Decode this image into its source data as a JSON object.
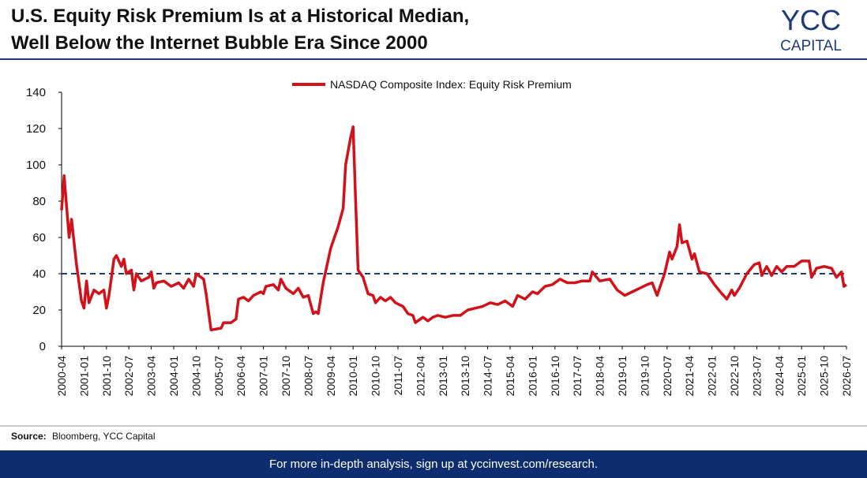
{
  "header": {
    "title_lines": [
      "U.S. Equity Risk Premium Is at a Historical Median,",
      "Well Below the Internet Bubble Era Since 2000"
    ],
    "logo_top": "YCC",
    "logo_bottom": "CAPITAL"
  },
  "chart_data": {
    "type": "line",
    "xlim": [
      "2000-04",
      "2026-07"
    ],
    "xticks": [
      "2000-04",
      "2001-01",
      "2001-10",
      "2002-07",
      "2003-04",
      "2004-01",
      "2004-10",
      "2005-07",
      "2006-04",
      "2007-01",
      "2007-10",
      "2008-07",
      "2009-04",
      "2010-01",
      "2010-10",
      "2011-07",
      "2012-04",
      "2013-01",
      "2013-10",
      "2014-07",
      "2015-04",
      "2016-01",
      "2016-10",
      "2017-07",
      "2018-04",
      "2019-01",
      "2019-10",
      "2020-07",
      "2021-04",
      "2022-01",
      "2022-10",
      "2023-07",
      "2024-04",
      "2025-01",
      "2025-10",
      "2026-07"
    ],
    "ylim": [
      0,
      140
    ],
    "yticks": [
      0,
      20,
      40,
      60,
      80,
      100,
      120,
      140
    ],
    "reference_line": 40,
    "reference_color": "#1f3a7a",
    "legend": "top",
    "x": [
      "2000-04",
      "2000-05",
      "2000-07",
      "2000-08",
      "2000-10",
      "2000-12",
      "2001-01",
      "2001-02",
      "2001-03",
      "2001-05",
      "2001-07",
      "2001-09",
      "2001-10",
      "2001-11",
      "2002-01",
      "2002-02",
      "2002-04",
      "2002-05",
      "2002-06",
      "2002-08",
      "2002-09",
      "2002-10",
      "2002-12",
      "2003-03",
      "2003-04",
      "2003-05",
      "2003-06",
      "2003-09",
      "2003-12",
      "2004-03",
      "2004-05",
      "2004-07",
      "2004-09",
      "2004-10",
      "2005-01",
      "2005-02",
      "2005-04",
      "2005-08",
      "2005-09",
      "2005-12",
      "2006-02",
      "2006-03",
      "2006-05",
      "2006-07",
      "2006-09",
      "2006-12",
      "2007-01",
      "2007-02",
      "2007-05",
      "2007-07",
      "2007-08",
      "2007-10",
      "2008-01",
      "2008-03",
      "2008-05",
      "2008-07",
      "2008-09",
      "2008-10",
      "2008-11",
      "2009-01",
      "2009-04",
      "2009-07",
      "2009-09",
      "2009-10",
      "2009-12",
      "2010-01",
      "2010-02",
      "2010-03",
      "2010-05",
      "2010-07",
      "2010-09",
      "2010-10",
      "2010-12",
      "2011-02",
      "2011-04",
      "2011-06",
      "2011-09",
      "2011-11",
      "2012-01",
      "2012-02",
      "2012-05",
      "2012-07",
      "2012-09",
      "2012-11",
      "2013-02",
      "2013-05",
      "2013-08",
      "2013-11",
      "2014-02",
      "2014-05",
      "2014-08",
      "2014-11",
      "2015-02",
      "2015-05",
      "2015-07",
      "2015-10",
      "2016-01",
      "2016-03",
      "2016-06",
      "2016-09",
      "2016-12",
      "2017-03",
      "2017-06",
      "2017-09",
      "2017-12",
      "2018-01",
      "2018-04",
      "2018-08",
      "2018-11",
      "2019-02",
      "2019-05",
      "2019-08",
      "2019-11",
      "2020-01",
      "2020-03",
      "2020-06",
      "2020-08",
      "2020-09",
      "2020-11",
      "2020-12",
      "2021-01",
      "2021-03",
      "2021-05",
      "2021-06",
      "2021-08",
      "2021-11",
      "2022-02",
      "2022-05",
      "2022-07",
      "2022-09",
      "2022-10",
      "2022-12",
      "2023-03",
      "2023-06",
      "2023-08",
      "2023-09",
      "2023-11",
      "2024-01",
      "2024-03",
      "2024-05",
      "2024-07",
      "2024-10",
      "2025-01",
      "2025-04",
      "2025-05",
      "2025-07",
      "2025-10",
      "2026-01",
      "2026-03",
      "2026-05",
      "2026-06",
      "2026-07"
    ],
    "series": [
      {
        "name": "NASDAQ Composite Index: Equity Risk Premium",
        "color": "#d0121b",
        "values": [
          75,
          94,
          60,
          70,
          45,
          25,
          21,
          36,
          24,
          31,
          29,
          31,
          21,
          28,
          48,
          50,
          44,
          48,
          40,
          42,
          31,
          40,
          36,
          38,
          41,
          32,
          35,
          36,
          33,
          35,
          32,
          37,
          33,
          40,
          37,
          29,
          9,
          10,
          13,
          13,
          15,
          26,
          27,
          25,
          28,
          30,
          29,
          33,
          34,
          31,
          37,
          32,
          29,
          32,
          27,
          28,
          18,
          19,
          18,
          35,
          54,
          66,
          76,
          100,
          115,
          121,
          80,
          42,
          38,
          29,
          28,
          24,
          27,
          25,
          27,
          24,
          22,
          18,
          17,
          13,
          16,
          14,
          16,
          17,
          16,
          17,
          17,
          20,
          21,
          22,
          24,
          23,
          25,
          22,
          28,
          26,
          30,
          29,
          33,
          34,
          37,
          35,
          35,
          36,
          36,
          41,
          36,
          37,
          31,
          28,
          30,
          32,
          34,
          35,
          28,
          40,
          52,
          48,
          55,
          67,
          57,
          58,
          48,
          51,
          41,
          40,
          34,
          29,
          26,
          31,
          28,
          32,
          40,
          45,
          46,
          39,
          44,
          39,
          44,
          41,
          44,
          44,
          47,
          47,
          38,
          43,
          44,
          43,
          38,
          41,
          33,
          34
        ]
      }
    ]
  },
  "source": {
    "label": "Source:",
    "text": "Bloomberg, YCC Capital"
  },
  "footer": "For more in-depth analysis, sign up at yccinvest.com/research."
}
